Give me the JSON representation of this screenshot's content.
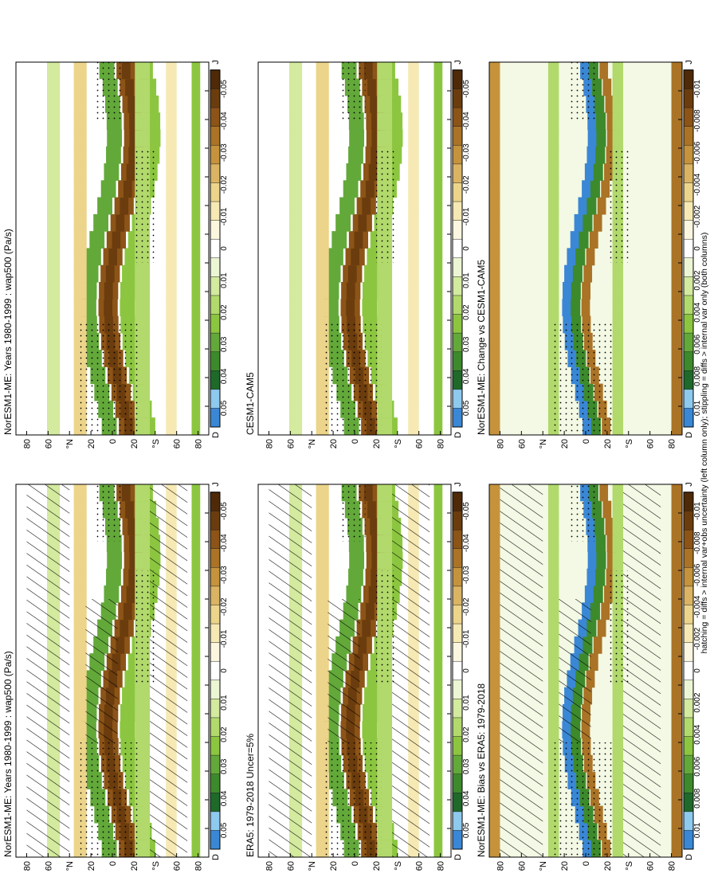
{
  "footnote": "hatching = diffs > internal var+obs uncertainty (left column only); stippling = diffs > internal var only (both columns)",
  "month_ticks": [
    "D",
    "J",
    "F",
    "M",
    "A",
    "M",
    "J",
    "J",
    "A",
    "S",
    "O",
    "N",
    "D",
    "J"
  ],
  "lat_ticks": [
    "80",
    "60",
    "°N",
    "20",
    "0",
    "20",
    "°S",
    "60",
    "80"
  ],
  "palette_main": [
    "#3a87d6",
    "#8ec9ee",
    "#1f6a2a",
    "#3d8a2c",
    "#63a93a",
    "#8cc640",
    "#b2d96c",
    "#d3ea9f",
    "#ecf6d4",
    "#ffffff",
    "#fbf6df",
    "#f6e9b3",
    "#ecd48a",
    "#dbb463",
    "#c5933c",
    "#aa7326",
    "#8c5417",
    "#6b3c0d",
    "#4f2a08"
  ],
  "colorbars": {
    "main": {
      "labels": [
        "0.05",
        "0.04",
        "0.03",
        "0.02",
        "0.01",
        "0",
        "-0.01",
        "-0.02",
        "-0.03",
        "-0.04",
        "-0.05"
      ]
    },
    "diff": {
      "labels": [
        "0.01",
        "0.008",
        "0.006",
        "0.004",
        "0.002",
        "0",
        "-0.002",
        "-0.004",
        "-0.006",
        "-0.008",
        "-0.01"
      ]
    }
  },
  "chart_data": [
    {
      "type": "heatmap",
      "title": "NorESM1-ME: Years 1980-1999 : wap500 (Pa/s)",
      "x": "month",
      "y": "latitude",
      "hatching": true,
      "stippling": true,
      "colorbar": "main"
    },
    {
      "type": "heatmap",
      "title": "NorESM1-ME: Years 1980-1999 : wap500 (Pa/s)",
      "x": "month",
      "y": "latitude",
      "hatching": false,
      "stippling": true,
      "colorbar": "main"
    },
    {
      "type": "heatmap",
      "title": "ERA5: 1979-2018 Uncer=5%",
      "x": "month",
      "y": "latitude",
      "hatching": true,
      "stippling": true,
      "colorbar": "main"
    },
    {
      "type": "heatmap",
      "title": "CESM1-CAM5",
      "x": "month",
      "y": "latitude",
      "hatching": false,
      "stippling": true,
      "colorbar": "main"
    },
    {
      "type": "heatmap",
      "title": "NorESM1-ME: Bias vs ERA5: 1979-2018",
      "x": "month",
      "y": "latitude",
      "hatching": true,
      "stippling": true,
      "colorbar": "diff"
    },
    {
      "type": "heatmap",
      "title": "NorESM1-ME: Change vs CESM1-CAM5",
      "x": "month",
      "y": "latitude",
      "hatching": false,
      "stippling": true,
      "colorbar": "diff"
    }
  ]
}
